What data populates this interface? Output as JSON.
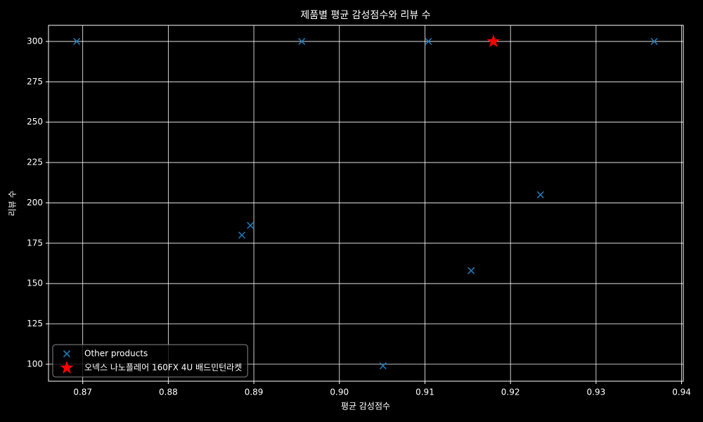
{
  "chart_data": {
    "type": "scatter",
    "title": "제품별 평균 감성점수와 리뷰 수",
    "x_label": "평균 감성점수",
    "y_label": "리뷰 수",
    "series": [
      {
        "name": "Other products",
        "color": "#1f77b4",
        "marker": "x",
        "x": [
          0.8693,
          0.8956,
          0.9104,
          0.9368,
          0.8886,
          0.8896,
          0.9051,
          0.9154,
          0.9235
        ],
        "values": [
          300,
          300,
          300,
          300,
          180,
          186,
          99,
          158,
          205
        ]
      },
      {
        "name": "오넥스 나노플레어 160FX 4U 배드민턴라켓",
        "color": "#ff0000",
        "marker": "star",
        "x": [
          0.918
        ],
        "values": [
          300
        ]
      }
    ],
    "xlim": [
      0.866,
      0.9402
    ],
    "ylim": [
      89.5,
      310
    ],
    "xticks": [
      0.87,
      0.88,
      0.89,
      {
        "value": 0.9,
        "label": "0.90"
      },
      0.91,
      0.92,
      0.93,
      0.94
    ],
    "yticks": [
      100,
      125,
      150,
      175,
      200,
      225,
      250,
      275,
      300
    ],
    "grid": true,
    "legend": "lower left"
  }
}
